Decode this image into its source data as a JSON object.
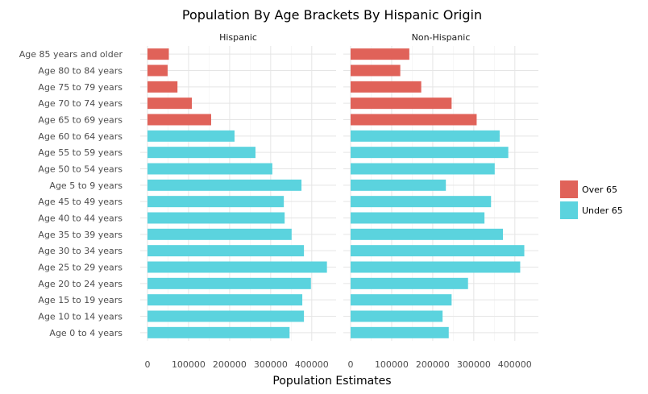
{
  "chart_data": {
    "type": "bar",
    "orientation": "horizontal",
    "title": "Population By Age Brackets By Hispanic Origin",
    "xlabel": "Population Estimates",
    "ylabel": "",
    "xlim": [
      0,
      460000
    ],
    "x_ticks": [
      0,
      100000,
      200000,
      300000,
      400000
    ],
    "x_tick_labels": [
      "0",
      "100000",
      "200000",
      "300000",
      "400000"
    ],
    "grid": true,
    "legend_position": "right",
    "facets": [
      "Hispanic",
      "Non-Hispanic"
    ],
    "categories": [
      "Age 85 years and older",
      "Age 80 to 84 years",
      "Age 75 to 79 years",
      "Age 70 to 74 years",
      "Age 65 to 69 years",
      "Age 60 to 64 years",
      "Age 55 to 59 years",
      "Age 50 to 54 years",
      "Age 5 to 9 years",
      "Age 45 to 49 years",
      "Age 40 to 44 years",
      "Age 35 to 39 years",
      "Age 30 to 34 years",
      "Age 25 to 29 years",
      "Age 20 to 24 years",
      "Age 15 to 19 years",
      "Age 10 to 14 years",
      "Age 0 to 4 years"
    ],
    "groups": [
      "Over 65",
      "Over 65",
      "Over 65",
      "Over 65",
      "Over 65",
      "Under 65",
      "Under 65",
      "Under 65",
      "Under 65",
      "Under 65",
      "Under 65",
      "Under 65",
      "Under 65",
      "Under 65",
      "Under 65",
      "Under 65",
      "Under 65",
      "Under 65"
    ],
    "legend": [
      {
        "name": "Over 65",
        "color": "#e06259"
      },
      {
        "name": "Under 65",
        "color": "#5bd3de"
      }
    ],
    "series": [
      {
        "facet": "Hispanic",
        "values": [
          52000,
          49000,
          73000,
          108000,
          155000,
          212000,
          263000,
          304000,
          375000,
          332000,
          334000,
          351000,
          381000,
          437000,
          398000,
          377000,
          381000,
          346000
        ]
      },
      {
        "facet": "Non-Hispanic",
        "values": [
          143000,
          121000,
          172000,
          246000,
          307000,
          363000,
          384000,
          351000,
          232000,
          342000,
          326000,
          371000,
          423000,
          413000,
          286000,
          246000,
          224000,
          239000
        ]
      }
    ]
  }
}
